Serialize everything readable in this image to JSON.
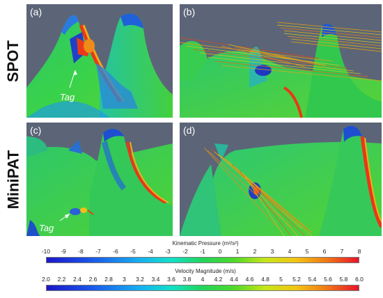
{
  "rows": [
    {
      "label": "SPOT"
    },
    {
      "label": "MiniPAT"
    }
  ],
  "panels": [
    {
      "letter": "(a)",
      "tag_label": "Tag"
    },
    {
      "letter": "(b)"
    },
    {
      "letter": "(c)",
      "tag_label": "Tag"
    },
    {
      "letter": "(d)"
    }
  ],
  "colorbars": [
    {
      "title": "Kinematic Pressure (m²/s²)",
      "ticks": [
        "-10",
        "-9",
        "-8",
        "-7",
        "-6",
        "-5",
        "-4",
        "-3",
        "-2",
        "-1",
        "0",
        "1",
        "2",
        "3",
        "4",
        "5",
        "6",
        "7",
        "8"
      ],
      "colors": [
        "#1b16c8",
        "#18b0f0",
        "#22d45a",
        "#c6e61a",
        "#f07618",
        "#e6142a"
      ]
    },
    {
      "title": "Velocity Magnitude (m/s)",
      "ticks": [
        "2.0",
        "2.2",
        "2.4",
        "2.6",
        "2.8",
        "3",
        "3.2",
        "3.4",
        "3.6",
        "3.8",
        "4",
        "4.2",
        "4.4",
        "4.6",
        "4.8",
        "5",
        "5.2",
        "5.4",
        "5.6",
        "5.8",
        "6.0"
      ],
      "colors": [
        "#1b16c8",
        "#18b0f0",
        "#22d45a",
        "#c6e61a",
        "#f07618",
        "#e6142a"
      ]
    }
  ]
}
